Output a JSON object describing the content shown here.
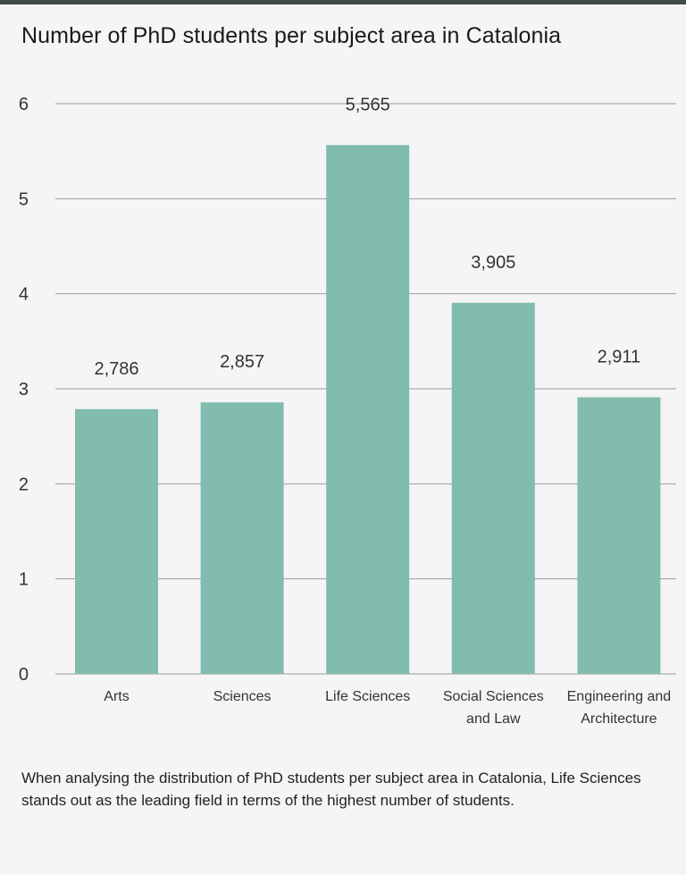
{
  "title": "Number of PhD students per subject area in Catalonia",
  "caption": "When analysing the distribution of PhD students per subject area in Catalonia, Life Sciences stands out as the leading field in terms of the highest number of students.",
  "colors": {
    "bar": "#82bcae",
    "grid": "#9a9a9a",
    "axis_text": "#333333",
    "top_rule": "#3f4a4a"
  },
  "chart_data": {
    "type": "bar",
    "categories": [
      [
        "Arts"
      ],
      [
        "Sciences"
      ],
      [
        "Life Sciences"
      ],
      [
        "Social Sciences",
        "and Law"
      ],
      [
        "Engineering and",
        "Architecture"
      ]
    ],
    "values": [
      2.786,
      2.857,
      5.565,
      3.905,
      2.911
    ],
    "data_labels": [
      "2,786",
      "2,857",
      "5,565",
      "3,905",
      "2,911"
    ],
    "yticks": [
      "0",
      "1",
      "2",
      "3",
      "4",
      "5",
      "6"
    ],
    "ylim": [
      0,
      6
    ],
    "grid": true
  }
}
